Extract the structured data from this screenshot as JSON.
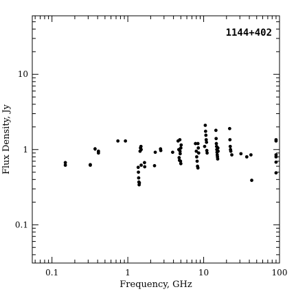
{
  "chart_data": {
    "type": "scatter",
    "title": "1144+402",
    "xlabel": "Frequency, GHz",
    "ylabel": "Flux Density, Jy",
    "x_scale": "log",
    "y_scale": "log",
    "xlim": [
      0.055,
      100
    ],
    "ylim": [
      0.031,
      60
    ],
    "x_major_ticks": [
      0.1,
      1,
      10,
      100
    ],
    "x_tick_labels": [
      "0.1",
      "1",
      "10",
      "100"
    ],
    "y_major_ticks": [
      0.1,
      1,
      10
    ],
    "y_tick_labels": [
      "0.1",
      "1",
      "10"
    ],
    "points": [
      {
        "x": 0.15,
        "y": 0.67
      },
      {
        "x": 0.15,
        "y": 0.62
      },
      {
        "x": 0.32,
        "y": 0.63
      },
      {
        "x": 0.32,
        "y": 0.62
      },
      {
        "x": 0.37,
        "y": 1.02,
        "err": 0.06
      },
      {
        "x": 0.41,
        "y": 0.95
      },
      {
        "x": 0.41,
        "y": 0.9
      },
      {
        "x": 0.74,
        "y": 1.3
      },
      {
        "x": 0.93,
        "y": 1.3
      },
      {
        "x": 1.37,
        "y": 0.58
      },
      {
        "x": 1.38,
        "y": 0.5
      },
      {
        "x": 1.39,
        "y": 0.42
      },
      {
        "x": 1.4,
        "y": 0.37
      },
      {
        "x": 1.41,
        "y": 0.34
      },
      {
        "x": 1.42,
        "y": 0.36
      },
      {
        "x": 1.45,
        "y": 0.95
      },
      {
        "x": 1.47,
        "y": 1.05
      },
      {
        "x": 1.49,
        "y": 1.1
      },
      {
        "x": 1.5,
        "y": 1.0
      },
      {
        "x": 1.5,
        "y": 0.62
      },
      {
        "x": 1.66,
        "y": 0.67
      },
      {
        "x": 1.67,
        "y": 0.59
      },
      {
        "x": 2.25,
        "y": 0.61
      },
      {
        "x": 2.3,
        "y": 0.92
      },
      {
        "x": 2.7,
        "y": 1.02
      },
      {
        "x": 2.72,
        "y": 0.97
      },
      {
        "x": 3.9,
        "y": 0.92
      },
      {
        "x": 4.6,
        "y": 1.3
      },
      {
        "x": 4.7,
        "y": 1.0
      },
      {
        "x": 4.75,
        "y": 0.78
      },
      {
        "x": 4.8,
        "y": 0.72
      },
      {
        "x": 4.85,
        "y": 1.35
      },
      {
        "x": 4.88,
        "y": 0.95
      },
      {
        "x": 4.9,
        "y": 0.88
      },
      {
        "x": 4.95,
        "y": 0.7
      },
      {
        "x": 5.0,
        "y": 0.65
      },
      {
        "x": 5.0,
        "y": 1.05
      },
      {
        "x": 5.05,
        "y": 1.15
      },
      {
        "x": 7.8,
        "y": 1.2
      },
      {
        "x": 8.0,
        "y": 0.95
      },
      {
        "x": 8.1,
        "y": 0.8
      },
      {
        "x": 8.2,
        "y": 0.7
      },
      {
        "x": 8.3,
        "y": 0.6
      },
      {
        "x": 8.4,
        "y": 0.57
      },
      {
        "x": 8.4,
        "y": 1.2
      },
      {
        "x": 8.5,
        "y": 1.05
      },
      {
        "x": 8.6,
        "y": 0.9
      },
      {
        "x": 10.3,
        "y": 1.1
      },
      {
        "x": 10.5,
        "y": 2.1
      },
      {
        "x": 10.6,
        "y": 1.75
      },
      {
        "x": 10.7,
        "y": 1.55
      },
      {
        "x": 10.8,
        "y": 1.35
      },
      {
        "x": 10.9,
        "y": 1.25
      },
      {
        "x": 11.0,
        "y": 0.97
      },
      {
        "x": 11.1,
        "y": 0.9
      },
      {
        "x": 14.5,
        "y": 1.8
      },
      {
        "x": 14.6,
        "y": 1.4
      },
      {
        "x": 14.7,
        "y": 1.2
      },
      {
        "x": 14.8,
        "y": 1.1
      },
      {
        "x": 14.9,
        "y": 1.0
      },
      {
        "x": 15.0,
        "y": 0.92
      },
      {
        "x": 15.1,
        "y": 0.85
      },
      {
        "x": 15.2,
        "y": 0.8
      },
      {
        "x": 15.3,
        "y": 0.75
      },
      {
        "x": 15.4,
        "y": 1.05
      },
      {
        "x": 15.5,
        "y": 0.95
      },
      {
        "x": 22.0,
        "y": 1.9
      },
      {
        "x": 22.2,
        "y": 1.35
      },
      {
        "x": 22.4,
        "y": 1.1
      },
      {
        "x": 22.6,
        "y": 1.0
      },
      {
        "x": 22.8,
        "y": 0.95
      },
      {
        "x": 23.5,
        "y": 0.85
      },
      {
        "x": 31.0,
        "y": 0.88
      },
      {
        "x": 37.0,
        "y": 0.8
      },
      {
        "x": 42.0,
        "y": 0.85
      },
      {
        "x": 43.0,
        "y": 0.39
      },
      {
        "x": 90.0,
        "y": 1.35
      },
      {
        "x": 90.0,
        "y": 1.3
      },
      {
        "x": 90.0,
        "y": 0.85
      },
      {
        "x": 90.0,
        "y": 0.8
      },
      {
        "x": 90.0,
        "y": 0.68
      },
      {
        "x": 90.0,
        "y": 0.49
      }
    ],
    "grid": false,
    "marker_color": "#000000"
  }
}
